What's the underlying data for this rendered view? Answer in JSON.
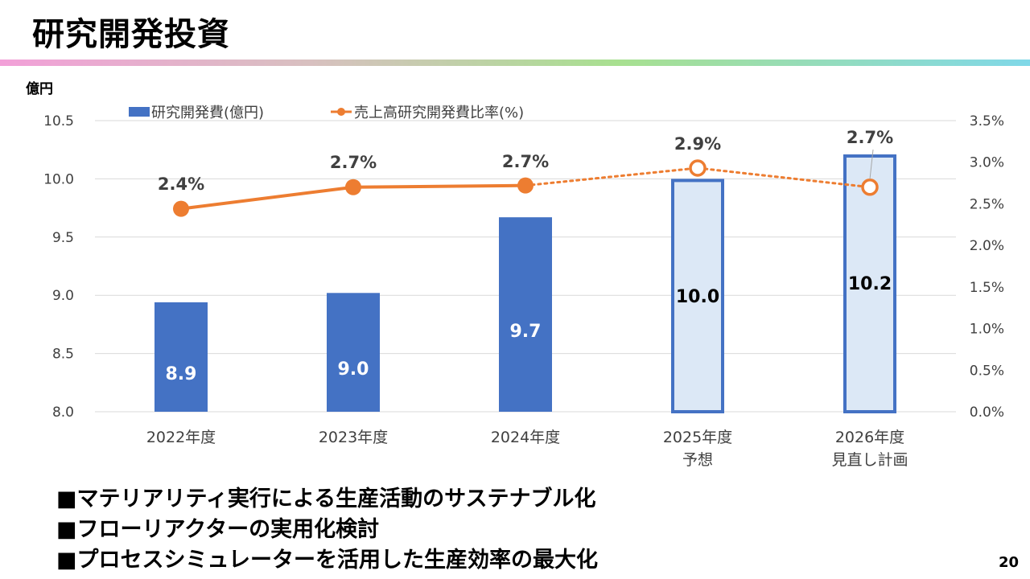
{
  "page": {
    "title": "研究開発投資",
    "page_number": "20",
    "bullets": [
      "■マテリアリティ実行による生産活動のサステナブル化",
      "■フローリアクターの実用化検討",
      "■プロセスシミュレーターを活用した生産効率の最大化"
    ]
  },
  "chart_data": {
    "type": "bar",
    "y_unit_label": "億円",
    "categories": [
      [
        "2022年度"
      ],
      [
        "2023年度"
      ],
      [
        "2024年度"
      ],
      [
        "2025年度",
        "予想"
      ],
      [
        "2026年度",
        "見直し計画"
      ]
    ],
    "legend_position": "top",
    "series": [
      {
        "name": "研究開発費(億円)",
        "type": "bar",
        "axis": "left",
        "values": [
          8.94,
          9.02,
          9.67,
          10.0,
          10.21
        ],
        "labels": [
          "8.9",
          "9.0",
          "9.7",
          "10.0",
          "10.2"
        ],
        "forecast_from_index": 3,
        "color": "#4472c4",
        "forecast_fill": "#dce8f6"
      },
      {
        "name": "売上高研究開発費比率(%)",
        "type": "line",
        "axis": "right",
        "values": [
          2.44,
          2.7,
          2.72,
          2.93,
          2.7
        ],
        "labels": [
          "2.4%",
          "2.7%",
          "2.7%",
          "2.9%",
          "2.7%"
        ],
        "forecast_from_index": 3,
        "color": "#ed7d31"
      }
    ],
    "left_axis": {
      "min": 8.0,
      "max": 10.5,
      "ticks": [
        "8.0",
        "8.5",
        "9.0",
        "9.5",
        "10.0",
        "10.5"
      ]
    },
    "right_axis": {
      "min": 0.0,
      "max": 3.5,
      "ticks": [
        "0.0%",
        "0.5%",
        "1.0%",
        "1.5%",
        "2.0%",
        "2.5%",
        "3.0%",
        "3.5%"
      ]
    },
    "grid": true
  }
}
